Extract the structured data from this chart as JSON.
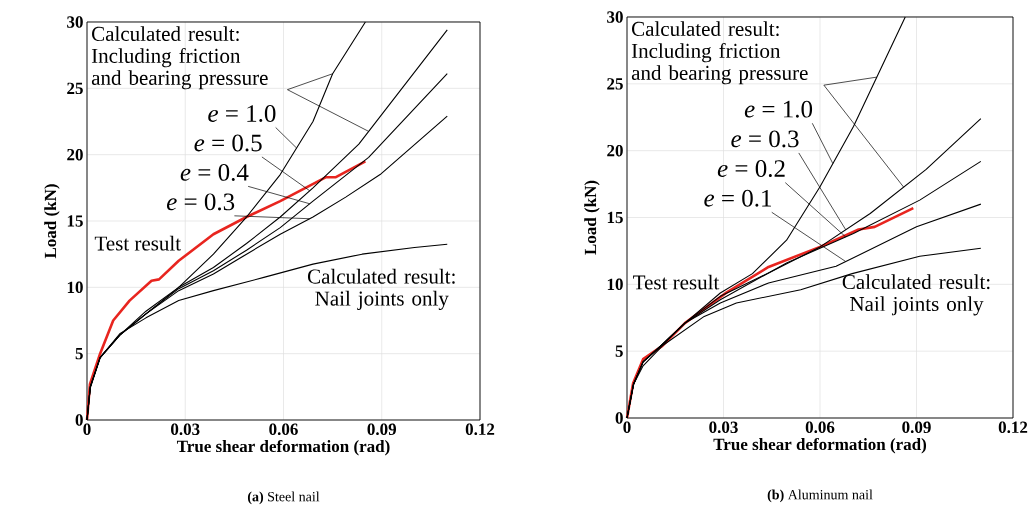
{
  "chart_data": [
    {
      "type": "line",
      "legend": "top",
      "title": "**(a)** Steel nail",
      "xlabel": "True shear deformation (rad)",
      "ylabel": "Load (kN)",
      "xlim": [
        0,
        0.12
      ],
      "ylim": [
        0,
        30
      ],
      "xticks": [
        0,
        0.03,
        0.06,
        0.09,
        0.12
      ],
      "yticks": [
        0,
        5,
        10,
        15,
        20,
        25,
        30
      ],
      "grid": true,
      "annotations": [
        {
          "text": "Calculated result: Including friction and bearing pressure",
          "x": 0.075,
          "y": 26.1
        }
      ],
      "series": [
        {
          "name": "Test result",
          "color": "#e8251f",
          "x": [
            0,
            0.0009,
            0.004,
            0.008,
            0.013,
            0.0197,
            0.022,
            0.028,
            0.0386,
            0.0487,
            0.059,
            0.073,
            0.076,
            0.085
          ],
          "values": [
            0,
            2.7,
            5.0,
            7.5,
            9.0,
            10.5,
            10.6,
            12.0,
            14.0,
            15.3,
            16.5,
            18.3,
            18.3,
            19.5
          ]
        },
        {
          "name": "Calculated result: Nail joints only",
          "color": "#000000",
          "x": [
            0,
            0.001,
            0.004,
            0.01,
            0.018,
            0.028,
            0.0386,
            0.054,
            0.069,
            0.084,
            0.1,
            0.11
          ],
          "values": [
            0,
            2.4,
            4.7,
            6.5,
            7.7,
            9.0,
            9.75,
            10.75,
            11.75,
            12.5,
            13.0,
            13.25
          ]
        },
        {
          "name": "*e* = 1.0",
          "color": "#000000",
          "x": [
            0,
            0.001,
            0.004,
            0.01,
            0.018,
            0.028,
            0.0386,
            0.0487,
            0.059,
            0.069,
            0.075,
            0.085
          ],
          "values": [
            0,
            2.5,
            4.7,
            6.4,
            8.2,
            10.0,
            12.5,
            15.3,
            18.5,
            22.5,
            26.1,
            30
          ]
        },
        {
          "name": "*e* = 0.5",
          "color": "#000000",
          "x": [
            0,
            0.001,
            0.004,
            0.01,
            0.018,
            0.028,
            0.0386,
            0.0487,
            0.059,
            0.069,
            0.083,
            0.11
          ],
          "values": [
            0,
            2.5,
            4.7,
            6.4,
            8.0,
            10.0,
            11.5,
            13.3,
            15.3,
            17.5,
            20.8,
            29.4
          ]
        },
        {
          "name": "*e* = 0.4",
          "color": "#000000",
          "x": [
            0,
            0.001,
            0.004,
            0.01,
            0.018,
            0.028,
            0.0386,
            0.0487,
            0.059,
            0.069,
            0.086,
            0.11
          ],
          "values": [
            0,
            2.5,
            4.7,
            6.4,
            8.0,
            9.9,
            11.25,
            12.8,
            14.5,
            16.5,
            19.8,
            26.1
          ]
        },
        {
          "name": "*e* = 0.3",
          "color": "#000000",
          "x": [
            0,
            0.001,
            0.004,
            0.01,
            0.018,
            0.028,
            0.0386,
            0.0487,
            0.059,
            0.069,
            0.079,
            0.0895,
            0.11
          ],
          "values": [
            0,
            2.5,
            4.7,
            6.4,
            8.0,
            9.75,
            11.0,
            12.5,
            14.0,
            15.3,
            16.8,
            18.5,
            22.9
          ]
        }
      ]
    },
    {
      "type": "line",
      "legend": "top",
      "title": "**(b)** Aluminum nail",
      "xlabel": "True shear deformation (rad)",
      "ylabel": "Load (kN)",
      "xlim": [
        0,
        0.12
      ],
      "ylim": [
        0,
        30
      ],
      "xticks": [
        0,
        0.03,
        0.06,
        0.09,
        0.12
      ],
      "yticks": [
        0,
        5,
        10,
        15,
        20,
        25,
        30
      ],
      "grid": true,
      "annotations": [
        {
          "text": "Calculated result: Including friction and bearing pressure",
          "x": 0.0776,
          "y": 25.5
        }
      ],
      "series": [
        {
          "name": "Test result",
          "color": "#e8251f",
          "x": [
            0,
            0.0019,
            0.005,
            0.011,
            0.018,
            0.031,
            0.044,
            0.06,
            0.072,
            0.077,
            0.089
          ],
          "values": [
            0,
            2.6,
            4.4,
            5.4,
            7.1,
            9.4,
            11.3,
            12.8,
            14.1,
            14.3,
            15.7
          ]
        },
        {
          "name": "Calculated result: Nail joints only",
          "color": "#000000",
          "x": [
            0,
            0.002,
            0.005,
            0.011,
            0.024,
            0.034,
            0.054,
            0.07,
            0.091,
            0.11
          ],
          "values": [
            0,
            2.5,
            3.9,
            5.4,
            7.6,
            8.6,
            9.6,
            10.8,
            12.1,
            12.7
          ]
        },
        {
          "name": "*e* = 1.0",
          "color": "#000000",
          "x": [
            0,
            0.002,
            0.005,
            0.011,
            0.018,
            0.029,
            0.039,
            0.0496,
            0.06,
            0.0704,
            0.0808,
            0.0865
          ],
          "values": [
            0,
            2.5,
            4.2,
            5.5,
            7.1,
            9.35,
            10.8,
            13.3,
            17.3,
            21.8,
            27.1,
            30
          ]
        },
        {
          "name": "*e* = 0.3",
          "color": "#000000",
          "x": [
            0,
            0.002,
            0.005,
            0.011,
            0.018,
            0.029,
            0.044,
            0.06,
            0.0756,
            0.093,
            0.11
          ],
          "values": [
            0,
            2.5,
            4.2,
            5.5,
            7.1,
            9.1,
            10.85,
            12.8,
            15.3,
            18.6,
            22.4
          ]
        },
        {
          "name": "*e* = 0.2",
          "color": "#000000",
          "x": [
            0,
            0.002,
            0.005,
            0.011,
            0.018,
            0.029,
            0.0496,
            0.0704,
            0.091,
            0.11
          ],
          "values": [
            0,
            2.5,
            4.2,
            5.5,
            7.1,
            8.85,
            11.6,
            13.8,
            16.3,
            19.2
          ]
        },
        {
          "name": "*e* = 0.1",
          "color": "#000000",
          "x": [
            0,
            0.002,
            0.005,
            0.011,
            0.018,
            0.029,
            0.044,
            0.065,
            0.09,
            0.11
          ],
          "values": [
            0,
            2.5,
            4.2,
            5.5,
            7.1,
            8.6,
            10.1,
            11.35,
            14.3,
            16.0
          ]
        }
      ]
    }
  ]
}
